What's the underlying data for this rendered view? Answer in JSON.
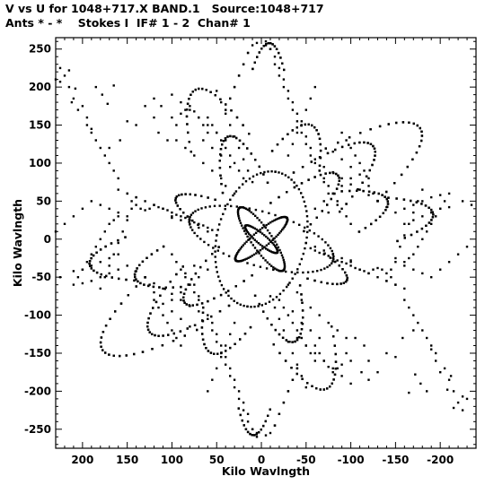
{
  "header": {
    "line1": "V vs U for 1048+717.X BAND.1   Source:1048+717",
    "line2": "Ants * - *    Stokes I  IF# 1 - 2  Chan# 1"
  },
  "chart_data": {
    "type": "scatter",
    "title": "V vs U for 1048+717.X BAND.1   Source:1048+717",
    "subtitle": "Ants * - *    Stokes I  IF# 1 - 2  Chan# 1",
    "xlabel": "Kilo Wavlngth",
    "ylabel": "Kilo Wavlngth",
    "xlim": [
      230,
      -240
    ],
    "ylim": [
      -275,
      265
    ],
    "xticks": [
      200,
      150,
      100,
      50,
      0,
      -50,
      -100,
      -150,
      -200
    ],
    "yticks": [
      250,
      200,
      150,
      100,
      50,
      0,
      -50,
      -100,
      -150,
      -200,
      -250
    ],
    "xtick_labels": [
      "200",
      "150",
      "100",
      "50",
      "0",
      "-50",
      "-100",
      "-150",
      "-200"
    ],
    "ytick_labels": [
      "250",
      "200",
      "150",
      "100",
      "50",
      "0",
      "-50",
      "-100",
      "-150",
      "-200",
      "-250"
    ],
    "grid": false,
    "legend": "none",
    "marker_color": "#000000",
    "tracks": [
      {
        "cx": 0,
        "cy": 0,
        "a": 40,
        "b": 10,
        "angle": 135,
        "t0": -180,
        "t1": 180,
        "n": 40
      },
      {
        "cx": 0,
        "cy": 0,
        "a": 48,
        "b": 12,
        "angle": 60,
        "t0": -180,
        "t1": 180,
        "n": 36
      },
      {
        "cx": 0,
        "cy": 0,
        "a": 25,
        "b": 6,
        "angle": 45,
        "t0": -180,
        "t1": 180,
        "n": 28
      },
      {
        "cx": 0,
        "cy": 0,
        "a": 120,
        "b": 28,
        "angle": 135,
        "t0": -70,
        "t1": 70,
        "n": 24
      },
      {
        "cx": 0,
        "cy": 0,
        "a": 120,
        "b": 28,
        "angle": 135,
        "t0": 110,
        "t1": 250,
        "n": 24
      },
      {
        "cx": 0,
        "cy": 0,
        "a": 175,
        "b": 42,
        "angle": 135,
        "t0": -60,
        "t1": 60,
        "n": 26
      },
      {
        "cx": 0,
        "cy": 0,
        "a": 175,
        "b": 42,
        "angle": 135,
        "t0": 120,
        "t1": 240,
        "n": 26
      },
      {
        "cx": 0,
        "cy": 0,
        "a": 230,
        "b": 55,
        "angle": 140,
        "t0": -55,
        "t1": 55,
        "n": 24
      },
      {
        "cx": 0,
        "cy": 0,
        "a": 230,
        "b": 55,
        "angle": 140,
        "t0": 125,
        "t1": 235,
        "n": 24
      },
      {
        "cx": 0,
        "cy": 0,
        "a": 150,
        "b": 40,
        "angle": 160,
        "t0": -45,
        "t1": 45,
        "n": 20
      },
      {
        "cx": 0,
        "cy": 0,
        "a": 150,
        "b": 40,
        "angle": 160,
        "t0": 135,
        "t1": 225,
        "n": 20
      },
      {
        "cx": 0,
        "cy": 0,
        "a": 195,
        "b": 45,
        "angle": 170,
        "t0": -40,
        "t1": 40,
        "n": 20
      },
      {
        "cx": 0,
        "cy": 0,
        "a": 195,
        "b": 45,
        "angle": 170,
        "t0": 140,
        "t1": 220,
        "n": 20
      },
      {
        "cx": 0,
        "cy": 0,
        "a": 140,
        "b": 30,
        "angle": 75,
        "t0": -60,
        "t1": 60,
        "n": 22
      },
      {
        "cx": 0,
        "cy": 0,
        "a": 140,
        "b": 30,
        "angle": 75,
        "t0": 120,
        "t1": 240,
        "n": 22
      },
      {
        "cx": 0,
        "cy": 0,
        "a": 210,
        "b": 45,
        "angle": 70,
        "t0": -50,
        "t1": 50,
        "n": 22
      },
      {
        "cx": 0,
        "cy": 0,
        "a": 210,
        "b": 45,
        "angle": 70,
        "t0": 130,
        "t1": 230,
        "n": 22
      },
      {
        "cx": 0,
        "cy": 0,
        "a": 258,
        "b": 35,
        "angle": 92,
        "t0": -30,
        "t1": 30,
        "n": 16
      },
      {
        "cx": 0,
        "cy": 0,
        "a": 258,
        "b": 35,
        "angle": 92,
        "t0": 150,
        "t1": 210,
        "n": 16
      },
      {
        "cx": 0,
        "cy": 0,
        "a": 90,
        "b": 50,
        "angle": 100,
        "t0": -180,
        "t1": 180,
        "n": 40
      },
      {
        "cx": 0,
        "cy": 0,
        "a": 85,
        "b": 35,
        "angle": 20,
        "t0": -180,
        "t1": 180,
        "n": 36
      },
      {
        "cx": 0,
        "cy": 0,
        "a": 110,
        "b": 25,
        "angle": 30,
        "t0": -50,
        "t1": 50,
        "n": 18
      },
      {
        "cx": 0,
        "cy": 0,
        "a": 110,
        "b": 25,
        "angle": 30,
        "t0": 130,
        "t1": 230,
        "n": 18
      },
      {
        "cx": 0,
        "cy": 0,
        "a": 160,
        "b": 40,
        "angle": 110,
        "t0": -45,
        "t1": 45,
        "n": 18
      },
      {
        "cx": 0,
        "cy": 0,
        "a": 160,
        "b": 40,
        "angle": 110,
        "t0": 135,
        "t1": 225,
        "n": 18
      }
    ],
    "points": [
      [
        225,
        207
      ],
      [
        215,
        222
      ],
      [
        208,
        198
      ],
      [
        212,
        180
      ],
      [
        200,
        175
      ],
      [
        195,
        160
      ],
      [
        190,
        145
      ],
      [
        185,
        200
      ],
      [
        178,
        190
      ],
      [
        172,
        178
      ],
      [
        165,
        202
      ],
      [
        170,
        120
      ],
      [
        158,
        130
      ],
      [
        150,
        155
      ],
      [
        140,
        150
      ],
      [
        130,
        175
      ],
      [
        120,
        185
      ],
      [
        120,
        160
      ],
      [
        115,
        140
      ],
      [
        112,
        175
      ],
      [
        105,
        130
      ],
      [
        100,
        160
      ],
      [
        95,
        150
      ],
      [
        90,
        165
      ],
      [
        85,
        170
      ],
      [
        80,
        175
      ],
      [
        75,
        168
      ],
      [
        70,
        160
      ],
      [
        65,
        150
      ],
      [
        60,
        140
      ],
      [
        205,
        -50
      ],
      [
        200,
        -40
      ],
      [
        195,
        -30
      ],
      [
        190,
        -20
      ],
      [
        185,
        -10
      ],
      [
        180,
        0
      ],
      [
        175,
        10
      ],
      [
        170,
        20
      ],
      [
        165,
        25
      ],
      [
        160,
        30
      ],
      [
        180,
        -65
      ],
      [
        175,
        -50
      ],
      [
        170,
        -35
      ],
      [
        165,
        -20
      ],
      [
        160,
        -5
      ],
      [
        155,
        10
      ],
      [
        150,
        25
      ],
      [
        145,
        40
      ],
      [
        140,
        55
      ],
      [
        150,
        60
      ],
      [
        145,
        50
      ],
      [
        140,
        45
      ],
      [
        135,
        40
      ],
      [
        130,
        38
      ],
      [
        125,
        40
      ],
      [
        120,
        45
      ],
      [
        115,
        42
      ],
      [
        110,
        40
      ],
      [
        105,
        38
      ],
      [
        100,
        35
      ],
      [
        95,
        32
      ],
      [
        90,
        30
      ],
      [
        85,
        28
      ],
      [
        80,
        25
      ],
      [
        75,
        22
      ],
      [
        70,
        20
      ],
      [
        65,
        18
      ],
      [
        60,
        15
      ],
      [
        55,
        12
      ],
      [
        -10,
        250
      ],
      [
        -5,
        255
      ],
      [
        5,
        258
      ],
      [
        15,
        245
      ],
      [
        20,
        230
      ],
      [
        25,
        215
      ],
      [
        30,
        200
      ],
      [
        35,
        185
      ],
      [
        40,
        170
      ],
      [
        -15,
        230
      ],
      [
        -20,
        215
      ],
      [
        -25,
        200
      ],
      [
        -30,
        185
      ],
      [
        -35,
        170
      ],
      [
        -40,
        155
      ],
      [
        -45,
        140
      ],
      [
        -50,
        125
      ],
      [
        -55,
        110
      ],
      [
        50,
        195
      ],
      [
        45,
        180
      ],
      [
        40,
        165
      ],
      [
        35,
        150
      ],
      [
        30,
        135
      ],
      [
        25,
        120
      ],
      [
        20,
        105
      ],
      [
        15,
        90
      ],
      [
        10,
        75
      ],
      [
        60,
        160
      ],
      [
        55,
        150
      ],
      [
        50,
        140
      ],
      [
        45,
        130
      ],
      [
        40,
        120
      ],
      [
        35,
        110
      ],
      [
        30,
        100
      ],
      [
        25,
        90
      ],
      [
        20,
        80
      ],
      [
        -60,
        100
      ],
      [
        -65,
        90
      ],
      [
        -70,
        80
      ],
      [
        -75,
        70
      ],
      [
        -80,
        60
      ],
      [
        -85,
        50
      ],
      [
        -90,
        40
      ],
      [
        -95,
        30
      ],
      [
        -100,
        20
      ],
      [
        -70,
        95
      ],
      [
        -80,
        88
      ],
      [
        -90,
        80
      ],
      [
        -100,
        72
      ],
      [
        -110,
        65
      ],
      [
        -120,
        58
      ],
      [
        -130,
        50
      ],
      [
        -140,
        42
      ],
      [
        -150,
        -30
      ],
      [
        -160,
        -35
      ],
      [
        -170,
        -40
      ],
      [
        -180,
        -45
      ],
      [
        -190,
        -50
      ],
      [
        -200,
        -40
      ],
      [
        -210,
        -30
      ],
      [
        -220,
        -20
      ],
      [
        -230,
        -10
      ],
      [
        -160,
        -80
      ],
      [
        -165,
        -90
      ],
      [
        -170,
        -100
      ],
      [
        -175,
        -110
      ],
      [
        -180,
        -120
      ],
      [
        -185,
        -130
      ],
      [
        -190,
        -140
      ],
      [
        -195,
        -150
      ],
      [
        -205,
        -170
      ],
      [
        -210,
        -185
      ],
      [
        -215,
        -200
      ],
      [
        -220,
        -215
      ],
      [
        -225,
        -225
      ],
      [
        -230,
        -210
      ],
      [
        -150,
        35
      ],
      [
        -160,
        40
      ],
      [
        -170,
        45
      ],
      [
        -180,
        50
      ],
      [
        -190,
        55
      ],
      [
        -200,
        58
      ],
      [
        -210,
        60
      ],
      [
        -225,
        50
      ],
      [
        -235,
        45
      ],
      [
        -160,
        20
      ],
      [
        -170,
        25
      ],
      [
        -180,
        30
      ],
      [
        -190,
        35
      ],
      [
        -200,
        40
      ],
      [
        -210,
        42
      ],
      [
        -100,
        -30
      ],
      [
        -110,
        -40
      ],
      [
        -120,
        -45
      ],
      [
        -130,
        -50
      ],
      [
        -140,
        -55
      ],
      [
        -150,
        -60
      ],
      [
        -160,
        -65
      ],
      [
        -40,
        -130
      ],
      [
        -50,
        -140
      ],
      [
        -60,
        -150
      ],
      [
        -70,
        -160
      ],
      [
        -80,
        -170
      ],
      [
        -90,
        -180
      ],
      [
        -100,
        -190
      ],
      [
        -40,
        -170
      ],
      [
        -35,
        -185
      ],
      [
        -30,
        -200
      ],
      [
        -25,
        -215
      ],
      [
        -20,
        -230
      ],
      [
        -15,
        -245
      ],
      [
        -10,
        -255
      ],
      [
        5,
        -260
      ],
      [
        10,
        -250
      ],
      [
        15,
        -240
      ],
      [
        20,
        -225
      ],
      [
        25,
        -210
      ],
      [
        30,
        -195
      ],
      [
        35,
        -180
      ],
      [
        40,
        -165
      ],
      [
        45,
        -150
      ],
      [
        50,
        -135
      ],
      [
        55,
        -120
      ],
      [
        60,
        -105
      ],
      [
        65,
        -90
      ],
      [
        70,
        -75
      ],
      [
        75,
        -60
      ],
      [
        60,
        -200
      ],
      [
        55,
        -185
      ],
      [
        50,
        -170
      ],
      [
        45,
        -155
      ],
      [
        40,
        -140
      ],
      [
        35,
        -125
      ],
      [
        30,
        -110
      ],
      [
        120,
        -80
      ],
      [
        115,
        -90
      ],
      [
        110,
        -100
      ],
      [
        105,
        -110
      ],
      [
        100,
        -120
      ],
      [
        95,
        -130
      ],
      [
        90,
        -140
      ],
      [
        130,
        -50
      ],
      [
        125,
        -60
      ],
      [
        120,
        -70
      ],
      [
        110,
        -85
      ],
      [
        100,
        -95
      ],
      [
        90,
        -105
      ],
      [
        80,
        -115
      ],
      [
        60,
        -40
      ],
      [
        70,
        -50
      ],
      [
        80,
        -60
      ],
      [
        90,
        -70
      ],
      [
        100,
        -80
      ],
      [
        85,
        -45
      ],
      [
        75,
        -35
      ],
      [
        -45,
        -80
      ],
      [
        -55,
        -90
      ],
      [
        -65,
        -100
      ],
      [
        -75,
        -110
      ],
      [
        -85,
        -120
      ],
      [
        -95,
        -130
      ],
      [
        -50,
        -5
      ],
      [
        -60,
        -10
      ],
      [
        -70,
        -15
      ],
      [
        -80,
        -20
      ],
      [
        -90,
        -25
      ],
      [
        -100,
        -28
      ],
      [
        -30,
        -60
      ],
      [
        -40,
        -70
      ],
      [
        -35,
        -95
      ],
      [
        -45,
        -110
      ],
      [
        -55,
        -120
      ],
      [
        -65,
        -130
      ]
    ]
  }
}
